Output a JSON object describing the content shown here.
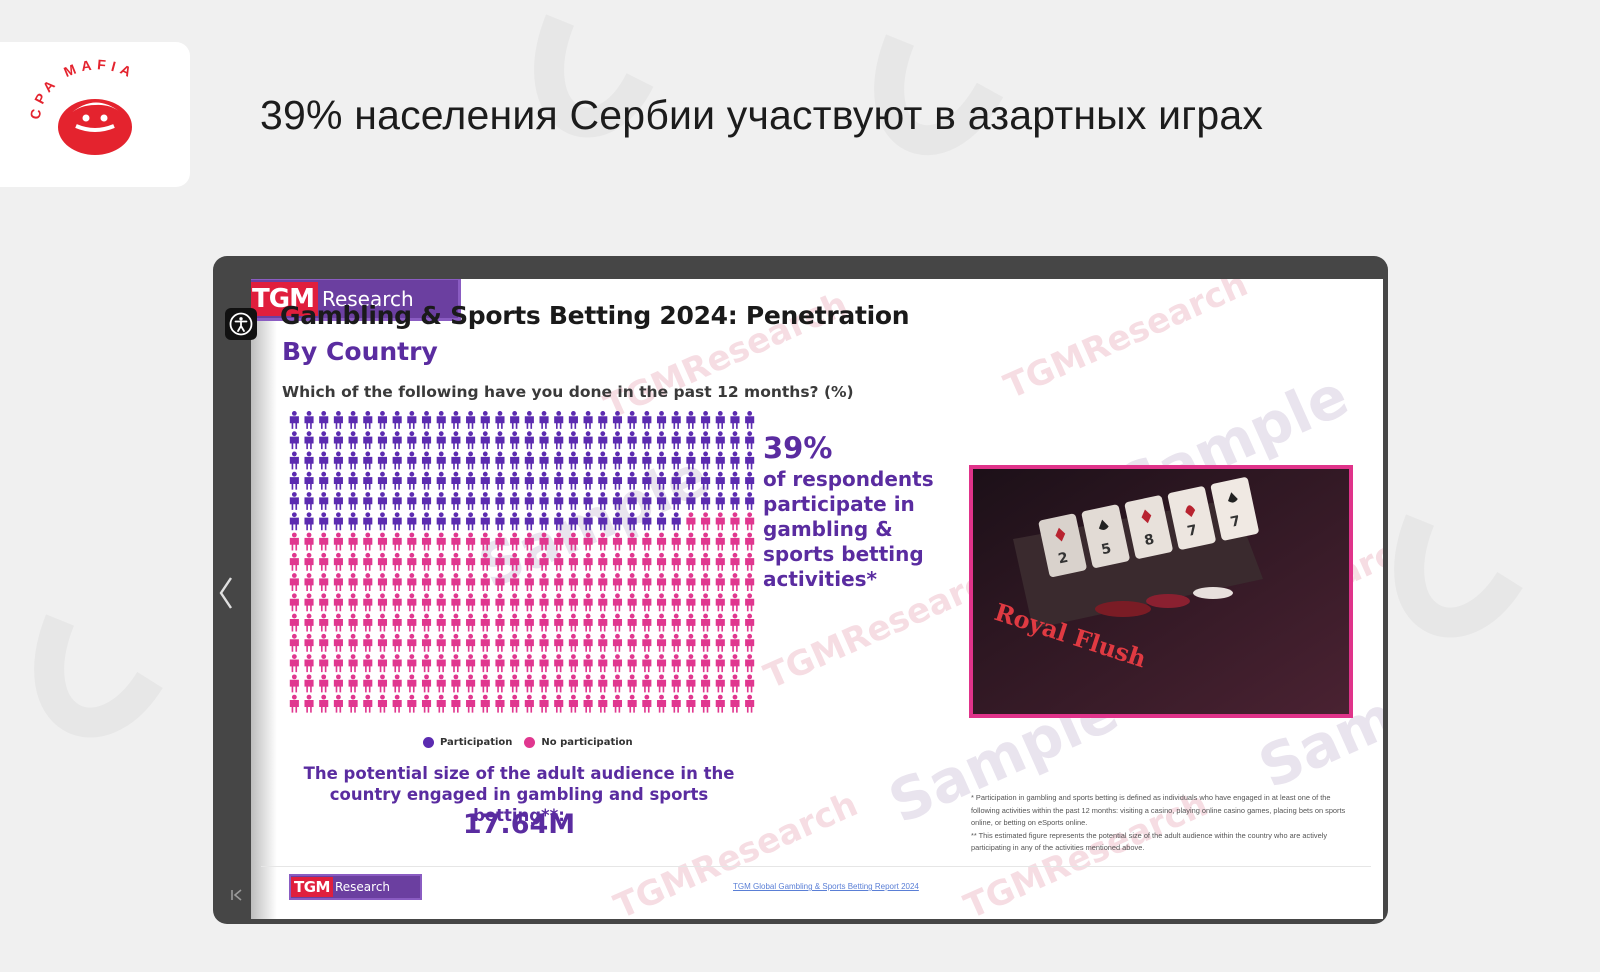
{
  "brand": {
    "logo_text": "CPA MAFIA",
    "accent": "#e4232e"
  },
  "headline": "39% населения Сербии участвуют в азартных играх",
  "viewer": {
    "prev_icon": "chevron-left-icon",
    "first_page_icon": "first-page-icon",
    "accessibility_icon": "accessibility-icon",
    "slide": {
      "logo_tgm": "TGM",
      "logo_research": "Research",
      "title": "Gambling & Sports Betting 2024: Penetration",
      "subtitle": "By Country",
      "question": "Which of the following have you done in the past 12 months? (%)",
      "stat_percent": "39%",
      "stat_description": "of respondents participate in gambling & sports betting activities*",
      "legend": {
        "participation": "Participation",
        "no_participation": "No participation"
      },
      "audience_label": "The potential size of the adult audience in the country engaged in gambling and sports betting**:",
      "audience_value": "17.64M",
      "footnote_1": "* Participation in gambling and sports betting is defined as individuals who have engaged in at least one of the following activities within the past 12 months: visiting a casino, playing online casino games, placing bets on sports online, or betting on eSports online.",
      "footnote_2": "** This estimated figure represents the potential size of the adult audience within the country who are actively participating in any of the activities mentioned above.",
      "source_link": "TGM Global Gambling & Sports Betting Report 2024",
      "watermark_sample": "Sample",
      "watermark_research": "TGMResearch",
      "photo_text": "Royal Flush",
      "pictogram": {
        "rows": 15,
        "cols": 32,
        "participation_share": 0.39,
        "participation_color": "#5b2bb0",
        "no_participation_color": "#e0378f"
      }
    }
  }
}
